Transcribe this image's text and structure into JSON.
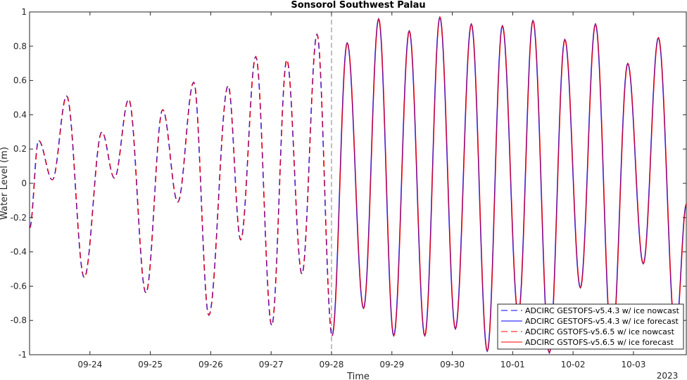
{
  "chart_data": {
    "type": "line",
    "title": "Sonsorol Southwest Palau",
    "xlabel": "Time",
    "ylabel": "Water Level (m)",
    "year_label": "2023",
    "x_ticks": [
      "09-24",
      "09-25",
      "09-26",
      "09-27",
      "09-28",
      "09-29",
      "09-30",
      "10-01",
      "10-02",
      "10-03"
    ],
    "y_ticks": [
      "-1",
      "-0.8",
      "-0.6",
      "-0.4",
      "-0.2",
      "0",
      "0.2",
      "0.4",
      "0.6",
      "0.8",
      "1"
    ],
    "ylim": [
      -1,
      1
    ],
    "xlim": [
      "2023-09-23 00:00",
      "2023-10-03 21:00"
    ],
    "grid": false,
    "legend_position": "bottom-right",
    "forecast_start": "2023-09-28 00:00",
    "extrema": [
      [
        "2023-09-23 00:00",
        -0.26
      ],
      [
        "2023-09-23 03:30",
        0.25
      ],
      [
        "2023-09-23 09:00",
        0.02
      ],
      [
        "2023-09-23 14:40",
        0.51
      ],
      [
        "2023-09-23 21:40",
        -0.55
      ],
      [
        "2023-09-24 04:40",
        0.3
      ],
      [
        "2023-09-24 09:40",
        0.03
      ],
      [
        "2023-09-24 15:20",
        0.49
      ],
      [
        "2023-09-24 22:10",
        -0.64
      ],
      [
        "2023-09-25 04:50",
        0.43
      ],
      [
        "2023-09-25 10:50",
        -0.11
      ],
      [
        "2023-09-25 17:10",
        0.59
      ],
      [
        "2023-09-25 23:10",
        -0.77
      ],
      [
        "2023-09-26 06:50",
        0.57
      ],
      [
        "2023-09-26 11:50",
        -0.33
      ],
      [
        "2023-09-26 17:50",
        0.74
      ],
      [
        "2023-09-27 00:10",
        -0.83
      ],
      [
        "2023-09-27 06:10",
        0.72
      ],
      [
        "2023-09-27 12:10",
        -0.53
      ],
      [
        "2023-09-27 18:10",
        0.87
      ],
      [
        "2023-09-28 00:10",
        -0.89
      ],
      [
        "2023-09-28 06:10",
        0.82
      ],
      [
        "2023-09-28 12:40",
        -0.73
      ],
      [
        "2023-09-28 18:40",
        0.96
      ],
      [
        "2023-09-29 00:40",
        -0.89
      ],
      [
        "2023-09-29 06:50",
        0.89
      ],
      [
        "2023-09-29 13:00",
        -0.89
      ],
      [
        "2023-09-29 19:00",
        0.97
      ],
      [
        "2023-09-30 01:10",
        -0.85
      ],
      [
        "2023-09-30 07:30",
        0.93
      ],
      [
        "2023-09-30 13:50",
        -0.98
      ],
      [
        "2023-09-30 19:50",
        0.92
      ],
      [
        "2023-10-01 02:10",
        -0.77
      ],
      [
        "2023-10-01 08:00",
        0.95
      ],
      [
        "2023-10-01 14:30",
        -0.99
      ],
      [
        "2023-10-01 20:40",
        0.84
      ],
      [
        "2023-10-02 02:50",
        -0.61
      ],
      [
        "2023-10-02 08:50",
        0.93
      ],
      [
        "2023-10-02 15:20",
        -0.96
      ],
      [
        "2023-10-02 21:40",
        0.7
      ],
      [
        "2023-10-03 03:50",
        -0.47
      ],
      [
        "2023-10-03 09:50",
        0.85
      ],
      [
        "2023-10-03 16:40",
        -0.88
      ],
      [
        "2023-10-03 21:00",
        -0.12
      ]
    ],
    "series": [
      {
        "name": "ADCIRC GESTOFS-v5.4.3 w/ ice nowcast",
        "color": "#0000ff",
        "style": "dashed",
        "segment": "nowcast"
      },
      {
        "name": "ADCIRC GESTOFS-v5.4.3 w/ ice forecast",
        "color": "#0000ff",
        "style": "solid",
        "segment": "forecast"
      },
      {
        "name": "ADCIRC GSTOFS-v5.6.5 w/ ice nowcast",
        "color": "#ff0000",
        "style": "dashed",
        "segment": "nowcast"
      },
      {
        "name": "ADCIRC GSTOFS-v5.6.5 w/ ice forecast",
        "color": "#ff0000",
        "style": "solid",
        "segment": "forecast"
      }
    ]
  }
}
